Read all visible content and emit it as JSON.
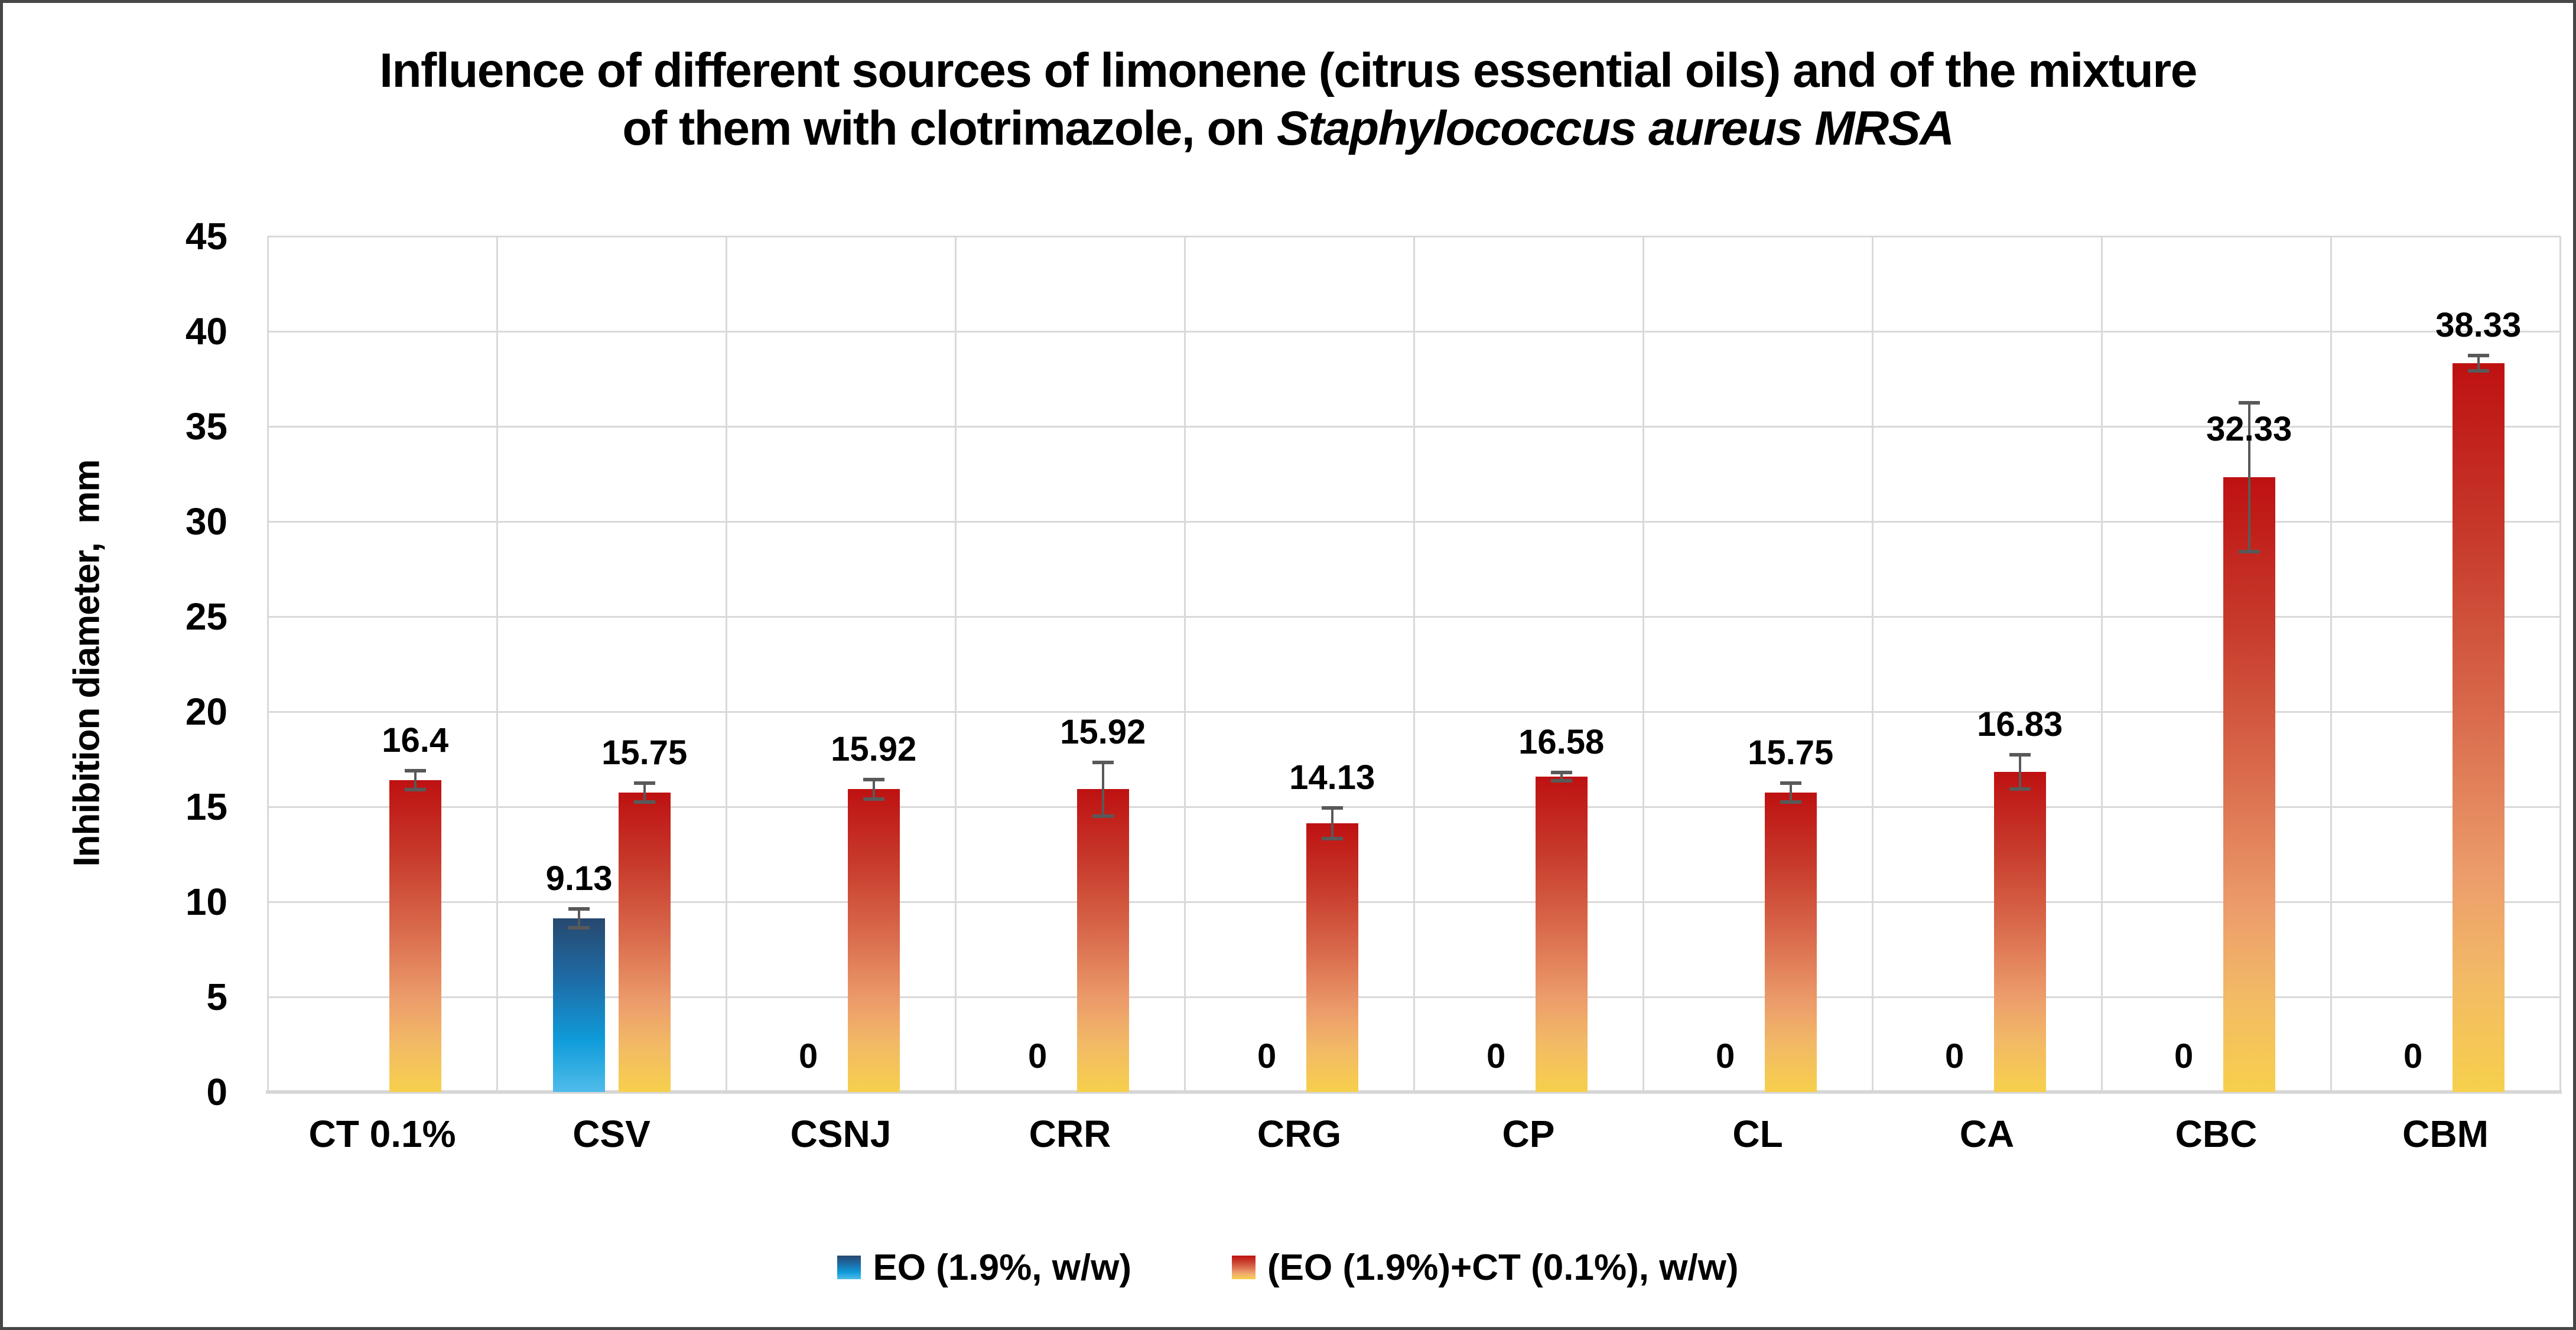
{
  "figure": {
    "title_line1": "Influence of different sources of limonene (citrus essential oils) and of the mixture",
    "title_line2_prefix": "of them with clotrimazole, on ",
    "title_line2_italic": "Staphylococcus aureus MRSA",
    "y_axis_title": "Inhibition diameter,  mm"
  },
  "y_axis": {
    "min": 0,
    "max": 45,
    "grid_interval": 5,
    "ticks": [
      45,
      40,
      35,
      30,
      25,
      20,
      15,
      10,
      5,
      0
    ]
  },
  "legend": {
    "items": [
      {
        "label": "EO (1.9%, w/w)",
        "swatch": "blue"
      },
      {
        "label": "(EO (1.9%)+CT (0.1%), w/w)",
        "swatch": "red"
      }
    ]
  },
  "colors": {
    "blue_bar_top": "#27496F",
    "blue_bar_bottom": "#4FBCEA",
    "red_bar_top": "#BE1111",
    "red_bar_bottom": "#F7D04C",
    "gridline": "#D9D9D9",
    "axis_line": "#D6D6D6",
    "error_bar": "#595959",
    "text": "#000000",
    "figure_border": "#474747"
  },
  "chart_data": {
    "type": "bar",
    "title": "Influence of different sources of limonene (citrus essential oils) and of the mixture of them with clotrimazole, on Staphylococcus aureus MRSA",
    "xlabel": "",
    "ylabel": "Inhibition diameter, mm",
    "ylim": [
      0,
      45
    ],
    "grid": true,
    "legend_position": "bottom",
    "categories": [
      "CT 0.1%",
      "CSV",
      "CSNJ",
      "CRR",
      "CRG",
      "CP",
      "CL",
      "CA",
      "CBC",
      "CBM"
    ],
    "series": [
      {
        "name": "EO (1.9%, w/w)",
        "color": "blue-gradient",
        "values": [
          null,
          9.13,
          0,
          0,
          0,
          0,
          0,
          0,
          0,
          0
        ],
        "errors": [
          null,
          0.6,
          null,
          null,
          null,
          null,
          null,
          null,
          null,
          null
        ],
        "label_pos": [
          null,
          null,
          null,
          null,
          null,
          null,
          null,
          null,
          null,
          null
        ]
      },
      {
        "name": "(EO (1.9%)+CT (0.1%), w/w)",
        "color": "red-gradient",
        "values": [
          16.4,
          15.75,
          15.92,
          15.92,
          14.13,
          16.58,
          15.75,
          16.83,
          32.33,
          38.33
        ],
        "errors": [
          0.6,
          0.6,
          0.6,
          1.5,
          0.9,
          0.3,
          0.6,
          1.0,
          4.0,
          0.5
        ],
        "label_pos": [
          null,
          null,
          null,
          null,
          null,
          null,
          null,
          null,
          33.9,
          null
        ]
      }
    ]
  }
}
